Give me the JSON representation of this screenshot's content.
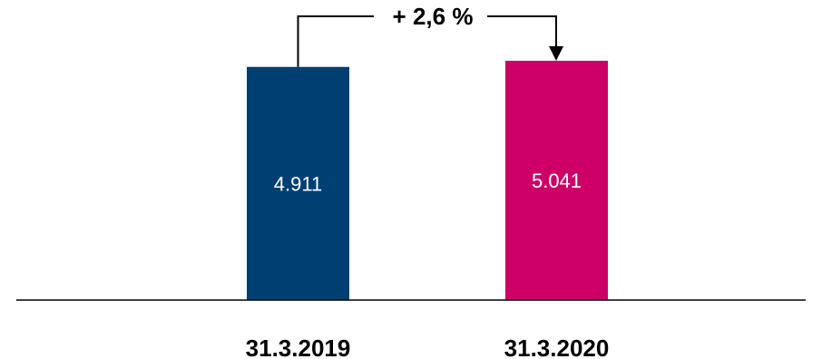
{
  "chart_data": {
    "type": "bar",
    "categories": [
      "31.3.2019",
      "31.3.2020"
    ],
    "values": [
      4911,
      5041
    ],
    "value_labels": [
      "4.911",
      "5.041"
    ],
    "colors": [
      "#003F72",
      "#CC0066"
    ],
    "change_annotation": "+ 2,6 %",
    "ylim": [
      0,
      5200
    ],
    "grid": false,
    "legend": "none"
  }
}
